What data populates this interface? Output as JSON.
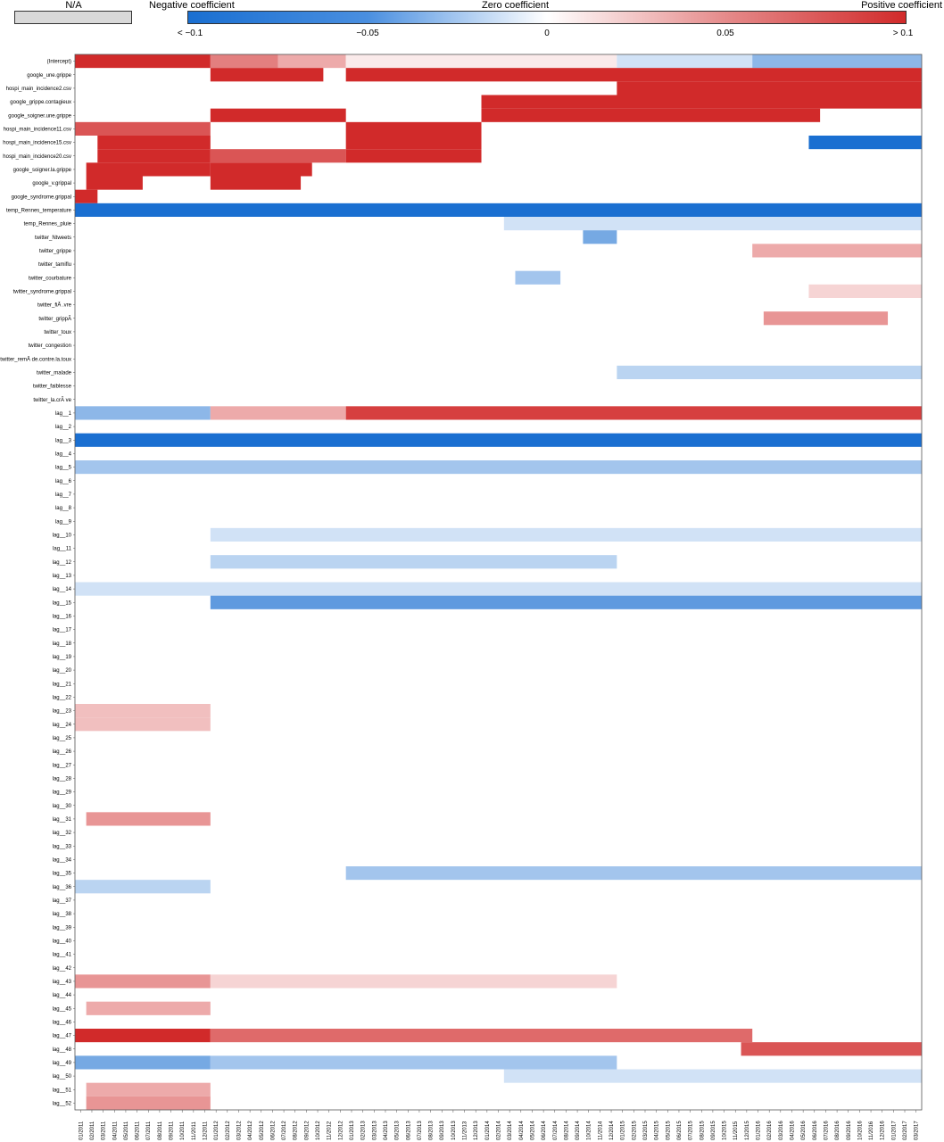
{
  "legend": {
    "na_label": "N/A",
    "negative_label": "Negative coefficient",
    "zero_label": "Zero coefficient",
    "positive_label": "Positive coefficient",
    "ticks": [
      "< −0.1",
      "−0.05",
      "0",
      "0.05",
      "> 0.1"
    ],
    "colors": {
      "negative": "#1a6fd1",
      "zero": "#ffffff",
      "positive": "#d12a2a",
      "na": "#d9d9d9"
    }
  },
  "chart_data": {
    "type": "heatmap",
    "color_range": [
      -0.1,
      0.1
    ],
    "rows": [
      "(Intercept)",
      "google_une.grippe",
      "hospi_main_incidence2.csv",
      "google_grippe.contagieux",
      "google_soigner.une.grippe",
      "hospi_main_incidence11.csv",
      "hospi_main_incidence15.csv",
      "hospi_main_incidence20.csv",
      "google_soigner.la.grippe",
      "google_v.grippal",
      "google_syndrome.grippal",
      "temp_Rennes_temperature",
      "temp_Rennes_pluie",
      "twitter_Ntweets",
      "twitter_grippe",
      "twitter_tamiflu",
      "twitter_courbature",
      "twitter_syndrome.grippal",
      "twitter_fiÃ .vre",
      "twitter_grippÃ",
      "twitter_toux",
      "twitter_congestion",
      "twitter_remÃ de.contre.la.toux",
      "twitter_malade",
      "twitter_faiblesse",
      "twitter_la.crÃ ve",
      "lag__1",
      "lag__2",
      "lag__3",
      "lag__4",
      "lag__5",
      "lag__6",
      "lag__7",
      "lag__8",
      "lag__9",
      "lag__10",
      "lag__11",
      "lag__12",
      "lag__13",
      "lag__14",
      "lag__15",
      "lag__16",
      "lag__17",
      "lag__18",
      "lag__19",
      "lag__20",
      "lag__21",
      "lag__22",
      "lag__23",
      "lag__24",
      "lag__25",
      "lag__26",
      "lag__27",
      "lag__28",
      "lag__29",
      "lag__30",
      "lag__31",
      "lag__32",
      "lag__33",
      "lag__34",
      "lag__35",
      "lag__36",
      "lag__37",
      "lag__38",
      "lag__39",
      "lag__40",
      "lag__41",
      "lag__42",
      "lag__43",
      "lag__44",
      "lag__45",
      "lag__46",
      "lag__47",
      "lag__48",
      "lag__49",
      "lag__50",
      "lag__51",
      "lag__52"
    ],
    "x_labels": [
      "01/2011",
      "02/2011",
      "03/2011",
      "04/2011",
      "05/2011",
      "06/2011",
      "07/2011",
      "08/2011",
      "09/2011",
      "10/2011",
      "11/2011",
      "12/2011",
      "01/2012",
      "02/2012",
      "03/2012",
      "04/2012",
      "05/2012",
      "06/2012",
      "07/2012",
      "08/2012",
      "09/2012",
      "10/2012",
      "11/2012",
      "12/2012",
      "01/2013",
      "02/2013",
      "03/2013",
      "04/2013",
      "05/2013",
      "06/2013",
      "07/2013",
      "08/2013",
      "09/2013",
      "10/2013",
      "11/2013",
      "12/2013",
      "01/2014",
      "02/2014",
      "03/2014",
      "04/2014",
      "05/2014",
      "06/2014",
      "07/2014",
      "08/2014",
      "09/2014",
      "10/2014",
      "11/2014",
      "12/2014",
      "01/2015",
      "02/2015",
      "03/2015",
      "04/2015",
      "05/2015",
      "06/2015",
      "07/2015",
      "08/2015",
      "09/2015",
      "10/2015",
      "11/2015",
      "12/2015",
      "01/2016",
      "02/2016",
      "03/2016",
      "04/2016",
      "05/2016",
      "06/2016",
      "07/2016",
      "08/2016",
      "09/2016",
      "10/2016",
      "11/2016",
      "12/2016",
      "01/2017",
      "02/2017",
      "03/2017"
    ],
    "blocks": [
      {
        "row": "(Intercept)",
        "from": "01/2011",
        "to": "12/2011",
        "value": 0.1
      },
      {
        "row": "(Intercept)",
        "from": "01/2012",
        "to": "06/2012",
        "value": 0.06
      },
      {
        "row": "(Intercept)",
        "from": "07/2012",
        "to": "12/2012",
        "value": 0.04
      },
      {
        "row": "(Intercept)",
        "from": "01/2013",
        "to": "12/2014",
        "value": 0.01
      },
      {
        "row": "(Intercept)",
        "from": "01/2015",
        "to": "12/2015",
        "value": -0.02
      },
      {
        "row": "(Intercept)",
        "from": "01/2016",
        "to": "03/2017",
        "value": -0.05
      },
      {
        "row": "google_une.grippe",
        "from": "01/2012",
        "to": "10/2012",
        "value": 0.1
      },
      {
        "row": "google_une.grippe",
        "from": "01/2013",
        "to": "03/2017",
        "value": 0.1
      },
      {
        "row": "hospi_main_incidence2.csv",
        "from": "01/2015",
        "to": "03/2017",
        "value": 0.1
      },
      {
        "row": "google_grippe.contagieux",
        "from": "01/2014",
        "to": "03/2017",
        "value": 0.1
      },
      {
        "row": "google_soigner.une.grippe",
        "from": "01/2012",
        "to": "12/2012",
        "value": 0.1
      },
      {
        "row": "google_soigner.une.grippe",
        "from": "01/2014",
        "to": "06/2016",
        "value": 0.1
      },
      {
        "row": "hospi_main_incidence11.csv",
        "from": "01/2011",
        "to": "12/2011",
        "value": 0.08
      },
      {
        "row": "hospi_main_incidence11.csv",
        "from": "01/2013",
        "to": "12/2013",
        "value": 0.1
      },
      {
        "row": "hospi_main_incidence15.csv",
        "from": "03/2011",
        "to": "12/2011",
        "value": 0.1
      },
      {
        "row": "hospi_main_incidence15.csv",
        "from": "01/2013",
        "to": "12/2013",
        "value": 0.1
      },
      {
        "row": "hospi_main_incidence15.csv",
        "from": "06/2016",
        "to": "03/2017",
        "value": -0.1
      },
      {
        "row": "hospi_main_incidence20.csv",
        "from": "03/2011",
        "to": "12/2011",
        "value": 0.1
      },
      {
        "row": "hospi_main_incidence20.csv",
        "from": "01/2012",
        "to": "12/2012",
        "value": 0.08
      },
      {
        "row": "hospi_main_incidence20.csv",
        "from": "01/2013",
        "to": "12/2013",
        "value": 0.1
      },
      {
        "row": "google_soigner.la.grippe",
        "from": "02/2011",
        "to": "12/2011",
        "value": 0.1
      },
      {
        "row": "google_soigner.la.grippe",
        "from": "01/2012",
        "to": "09/2012",
        "value": 0.1
      },
      {
        "row": "google_v.grippal",
        "from": "02/2011",
        "to": "06/2011",
        "value": 0.1
      },
      {
        "row": "google_v.grippal",
        "from": "01/2012",
        "to": "08/2012",
        "value": 0.1
      },
      {
        "row": "google_syndrome.grippal",
        "from": "01/2011",
        "to": "02/2011",
        "value": 0.1
      },
      {
        "row": "temp_Rennes_temperature",
        "from": "01/2011",
        "to": "03/2017",
        "value": -0.1
      },
      {
        "row": "temp_Rennes_pluie",
        "from": "03/2014",
        "to": "03/2017",
        "value": -0.02
      },
      {
        "row": "twitter_Ntweets",
        "from": "10/2014",
        "to": "12/2014",
        "value": -0.06
      },
      {
        "row": "twitter_grippe",
        "from": "01/2016",
        "to": "03/2017",
        "value": 0.04
      },
      {
        "row": "twitter_courbature",
        "from": "04/2014",
        "to": "07/2014",
        "value": -0.04
      },
      {
        "row": "twitter_syndrome.grippal",
        "from": "06/2016",
        "to": "03/2017",
        "value": 0.02
      },
      {
        "row": "twitter_grippÃ",
        "from": "02/2016",
        "to": "12/2016",
        "value": 0.05
      },
      {
        "row": "twitter_malade",
        "from": "01/2015",
        "to": "03/2017",
        "value": -0.03
      },
      {
        "row": "lag__1",
        "from": "01/2011",
        "to": "12/2011",
        "value": -0.05
      },
      {
        "row": "lag__1",
        "from": "01/2012",
        "to": "12/2012",
        "value": 0.04
      },
      {
        "row": "lag__1",
        "from": "01/2013",
        "to": "03/2017",
        "value": 0.09
      },
      {
        "row": "lag__3",
        "from": "01/2011",
        "to": "03/2017",
        "value": -0.1
      },
      {
        "row": "lag__5",
        "from": "01/2011",
        "to": "03/2017",
        "value": -0.04
      },
      {
        "row": "lag__10",
        "from": "01/2012",
        "to": "03/2017",
        "value": -0.02
      },
      {
        "row": "lag__12",
        "from": "01/2012",
        "to": "12/2014",
        "value": -0.03
      },
      {
        "row": "lag__14",
        "from": "01/2011",
        "to": "03/2017",
        "value": -0.02
      },
      {
        "row": "lag__15",
        "from": "01/2012",
        "to": "03/2017",
        "value": -0.07
      },
      {
        "row": "lag__23",
        "from": "01/2011",
        "to": "12/2011",
        "value": 0.03
      },
      {
        "row": "lag__24",
        "from": "01/2011",
        "to": "12/2011",
        "value": 0.03
      },
      {
        "row": "lag__31",
        "from": "02/2011",
        "to": "12/2011",
        "value": 0.05
      },
      {
        "row": "lag__35",
        "from": "01/2013",
        "to": "03/2017",
        "value": -0.04
      },
      {
        "row": "lag__36",
        "from": "01/2011",
        "to": "12/2011",
        "value": -0.03
      },
      {
        "row": "lag__43",
        "from": "01/2011",
        "to": "12/2011",
        "value": 0.05
      },
      {
        "row": "lag__43",
        "from": "01/2012",
        "to": "12/2014",
        "value": 0.02
      },
      {
        "row": "lag__45",
        "from": "02/2011",
        "to": "12/2011",
        "value": 0.04
      },
      {
        "row": "lag__47",
        "from": "01/2011",
        "to": "12/2011",
        "value": 0.1
      },
      {
        "row": "lag__47",
        "from": "01/2012",
        "to": "12/2015",
        "value": 0.07
      },
      {
        "row": "lag__48",
        "from": "12/2015",
        "to": "03/2017",
        "value": 0.08
      },
      {
        "row": "lag__49",
        "from": "01/2011",
        "to": "12/2011",
        "value": -0.06
      },
      {
        "row": "lag__49",
        "from": "01/2012",
        "to": "12/2014",
        "value": -0.04
      },
      {
        "row": "lag__50",
        "from": "03/2014",
        "to": "03/2017",
        "value": -0.02
      },
      {
        "row": "lag__51",
        "from": "02/2011",
        "to": "12/2011",
        "value": 0.04
      },
      {
        "row": "lag__52",
        "from": "02/2011",
        "to": "12/2011",
        "value": 0.05
      }
    ]
  }
}
